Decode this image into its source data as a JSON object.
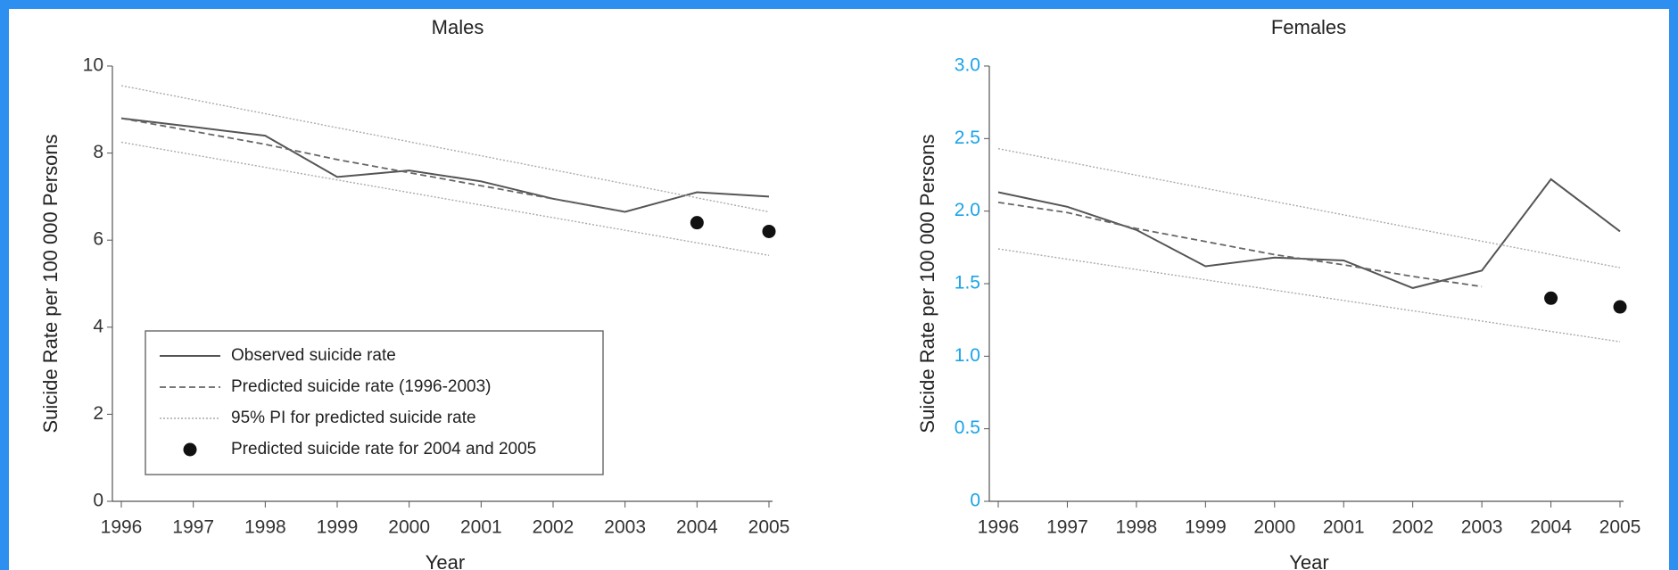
{
  "colors": {
    "border": "#2d8ff0",
    "observed": "#555555",
    "predicted": "#666666",
    "pi": "#aaaaaa",
    "marker": "#111111",
    "females_ytick": "#1aa3e8"
  },
  "chart_data": [
    {
      "type": "line",
      "title": "Males",
      "xlabel": "Year",
      "ylabel": "Suicide Rate per 100 000 Persons",
      "x": [
        1996,
        1997,
        1998,
        1999,
        2000,
        2001,
        2002,
        2003,
        2004,
        2005
      ],
      "xticks": [
        "1996",
        "1997",
        "1998",
        "1999",
        "2000",
        "2001",
        "2002",
        "2003",
        "2004",
        "2005"
      ],
      "yticks": [
        "0",
        "2",
        "4",
        "6",
        "8",
        "10"
      ],
      "ylim": [
        0,
        10
      ],
      "series": [
        {
          "name": "Observed suicide rate",
          "style": "solid",
          "x": [
            1996,
            1997,
            1998,
            1999,
            2000,
            2001,
            2002,
            2003,
            2004,
            2005
          ],
          "y": [
            8.8,
            8.6,
            8.4,
            7.45,
            7.6,
            7.35,
            6.95,
            6.65,
            7.1,
            7.0
          ]
        },
        {
          "name": "Predicted suicide rate (1996-2003)",
          "style": "dashed",
          "x": [
            1996,
            1997,
            1998,
            1999,
            2000,
            2001,
            2002,
            2003
          ],
          "y": [
            8.8,
            8.5,
            8.2,
            7.85,
            7.55,
            7.25,
            6.95,
            6.65
          ]
        },
        {
          "name": "95% PI for predicted suicide rate",
          "style": "dotted",
          "x": [
            1996,
            2005
          ],
          "y": [
            9.55,
            6.65
          ]
        },
        {
          "name": "",
          "style": "dotted",
          "x": [
            1996,
            2005
          ],
          "y": [
            8.25,
            5.65
          ]
        },
        {
          "name": "Predicted suicide rate for 2004 and 2005",
          "style": "marker",
          "x": [
            2004,
            2005
          ],
          "y": [
            6.4,
            6.2
          ]
        }
      ],
      "legend": {
        "placement": "bottom-left",
        "entries": [
          {
            "label": "Observed suicide rate",
            "style": "solid"
          },
          {
            "label": "Predicted suicide rate (1996-2003)",
            "style": "dashed"
          },
          {
            "label": "95% PI for predicted suicide rate",
            "style": "dotted"
          },
          {
            "label": "Predicted suicide rate for 2004 and 2005",
            "style": "marker"
          }
        ]
      }
    },
    {
      "type": "line",
      "title": "Females",
      "xlabel": "Year",
      "ylabel": "Suicide Rate per 100 000 Persons",
      "x": [
        1996,
        1997,
        1998,
        1999,
        2000,
        2001,
        2002,
        2003,
        2004,
        2005
      ],
      "xticks": [
        "1996",
        "1997",
        "1998",
        "1999",
        "2000",
        "2001",
        "2002",
        "2003",
        "2004",
        "2005"
      ],
      "yticks": [
        "0",
        "0.5",
        "1.0",
        "1.5",
        "2.0",
        "2.5",
        "3.0"
      ],
      "ylim": [
        0,
        3.0
      ],
      "series": [
        {
          "name": "Observed suicide rate",
          "style": "solid",
          "x": [
            1996,
            1997,
            1998,
            1999,
            2000,
            2001,
            2002,
            2003,
            2004,
            2005
          ],
          "y": [
            2.13,
            2.03,
            1.87,
            1.62,
            1.68,
            1.66,
            1.47,
            1.59,
            2.22,
            1.86
          ]
        },
        {
          "name": "Predicted suicide rate (1996-2003)",
          "style": "dashed",
          "x": [
            1996,
            1997,
            1998,
            1999,
            2000,
            2001,
            2002,
            2003
          ],
          "y": [
            2.06,
            1.99,
            1.88,
            1.79,
            1.7,
            1.63,
            1.55,
            1.48
          ]
        },
        {
          "name": "95% PI for predicted suicide rate",
          "style": "dotted",
          "x": [
            1996,
            2005
          ],
          "y": [
            2.43,
            1.61
          ]
        },
        {
          "name": "",
          "style": "dotted",
          "x": [
            1996,
            2005
          ],
          "y": [
            1.74,
            1.1
          ]
        },
        {
          "name": "Predicted suicide rate for 2004 and 2005",
          "style": "marker",
          "x": [
            2004,
            2005
          ],
          "y": [
            1.4,
            1.34
          ]
        }
      ]
    }
  ]
}
